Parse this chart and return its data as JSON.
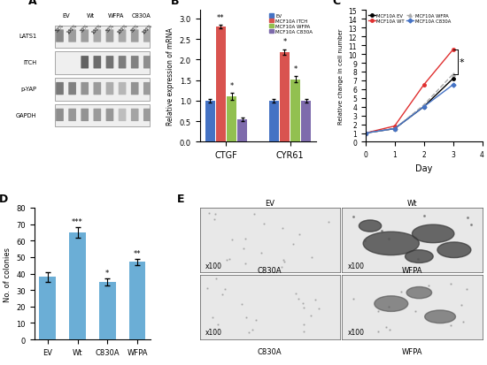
{
  "panel_labels": [
    "A",
    "B",
    "C",
    "D",
    "E"
  ],
  "western_labels": [
    "LATS1",
    "ITCH",
    "p-YAP",
    "GAPDH"
  ],
  "western_col_labels": [
    "EV",
    "Wt",
    "WFPA",
    "C830A"
  ],
  "western_pct_labels": [
    "50%",
    "100%",
    "50%",
    "100%",
    "50%",
    "100%",
    "50%",
    "100%"
  ],
  "bar_b_categories": [
    "CTGF",
    "CYR61"
  ],
  "bar_b_groups": [
    "EV",
    "MCF10A ITCH",
    "MCF10A WFPA",
    "MCF10A C830A"
  ],
  "bar_b_colors": [
    "#4472c4",
    "#d9534f",
    "#92c050",
    "#7e6bac"
  ],
  "bar_b_ctgf": [
    1.0,
    2.8,
    1.1,
    0.55
  ],
  "bar_b_cyr61": [
    1.0,
    2.18,
    1.52,
    1.0
  ],
  "bar_b_ctgf_err": [
    0.05,
    0.05,
    0.09,
    0.04
  ],
  "bar_b_cyr61_err": [
    0.05,
    0.07,
    0.07,
    0.05
  ],
  "bar_b_ctgf_sig": [
    "",
    "**",
    "*",
    ""
  ],
  "bar_b_cyr61_sig": [
    "",
    "*",
    "*",
    ""
  ],
  "bar_b_ylabel": "Relative expression of mRNA",
  "bar_b_ylim": [
    0,
    3.2
  ],
  "line_c_days": [
    0,
    1,
    2,
    3
  ],
  "line_c_EV": [
    1.0,
    1.5,
    4.0,
    7.2
  ],
  "line_c_WT": [
    1.0,
    1.8,
    6.5,
    10.5
  ],
  "line_c_WFPA": [
    1.0,
    1.5,
    4.2,
    7.7
  ],
  "line_c_C830A": [
    1.0,
    1.5,
    4.0,
    6.5
  ],
  "line_c_colors": [
    "#000000",
    "#e03030",
    "#aaaaaa",
    "#4472c4"
  ],
  "line_c_labels": [
    "MCF10A EV",
    "MCF10A WT",
    "MCF10A WFPA",
    "MCF10A C830A"
  ],
  "line_c_ylabel": "Relative change in cell number",
  "line_c_xlabel": "Day",
  "line_c_ylim": [
    0,
    15
  ],
  "line_c_xlim": [
    0,
    4
  ],
  "bar_d_categories": [
    "EV",
    "Wt",
    "C830A",
    "WFPA"
  ],
  "bar_d_values": [
    38,
    65,
    35,
    47
  ],
  "bar_d_errors": [
    3,
    3,
    2,
    2
  ],
  "bar_d_color": "#6baed6",
  "bar_d_sig": [
    "",
    "***",
    "*",
    "**"
  ],
  "bar_d_ylabel": "No. of colonies",
  "bar_d_ylim": [
    0,
    80
  ],
  "microscopy_titles": [
    "EV",
    "Wt",
    "C830A",
    "WFPA"
  ],
  "microscopy_bottom_labels": [
    "",
    "",
    "C830A",
    "WFPA"
  ],
  "microscopy_mag": [
    "x100",
    "x100",
    "x100",
    "x100"
  ]
}
